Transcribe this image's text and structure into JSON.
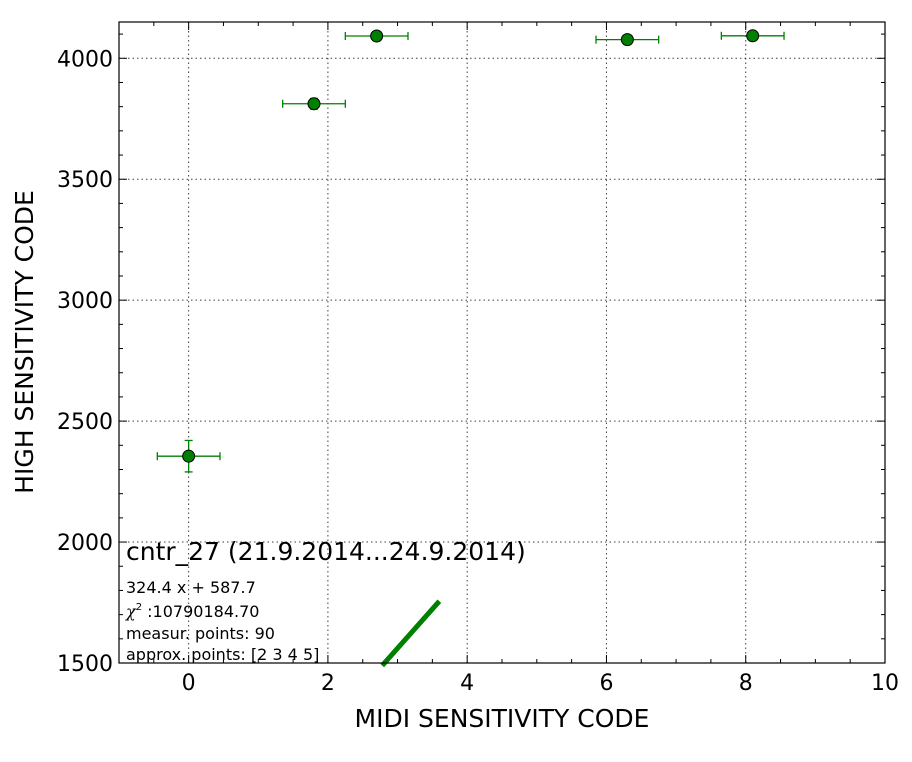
{
  "chart_data": {
    "type": "scatter",
    "xlabel": "MIDI SENSITIVITY CODE",
    "ylabel": "HIGH SENSITIVITY CODE",
    "xlim": [
      -1,
      10
    ],
    "ylim": [
      1500,
      4150
    ],
    "x_ticks": [
      0,
      2,
      4,
      6,
      8,
      10
    ],
    "y_ticks": [
      1500,
      2000,
      2500,
      3000,
      3500,
      4000
    ],
    "grid": true,
    "color": "#008000",
    "points": [
      {
        "x": 0.0,
        "y": 2355,
        "xerr": 0.45,
        "yerr": 65
      },
      {
        "x": 1.8,
        "y": 3812,
        "xerr": 0.45,
        "yerr": 22
      },
      {
        "x": 2.7,
        "y": 4092,
        "xerr": 0.45,
        "yerr": 10
      },
      {
        "x": 6.3,
        "y": 4077,
        "xerr": 0.45,
        "yerr": 12
      },
      {
        "x": 8.1,
        "y": 4093,
        "xerr": 0.45,
        "yerr": 10
      }
    ],
    "fit_line": {
      "slope": 324.4,
      "intercept": 587.7,
      "x_range": [
        2.78,
        3.6
      ],
      "color": "#008000"
    },
    "annotation": {
      "title": "cntr_27 (21.9.2014...24.9.2014)",
      "equation": "324.4 x + 587.7",
      "chi2_label": "χ",
      "chi2_sup": "2",
      "chi2_value": " :10790184.70",
      "measur_points": "measur. points: 90",
      "approx_points": "approx. points: [2 3 4 5]"
    }
  }
}
